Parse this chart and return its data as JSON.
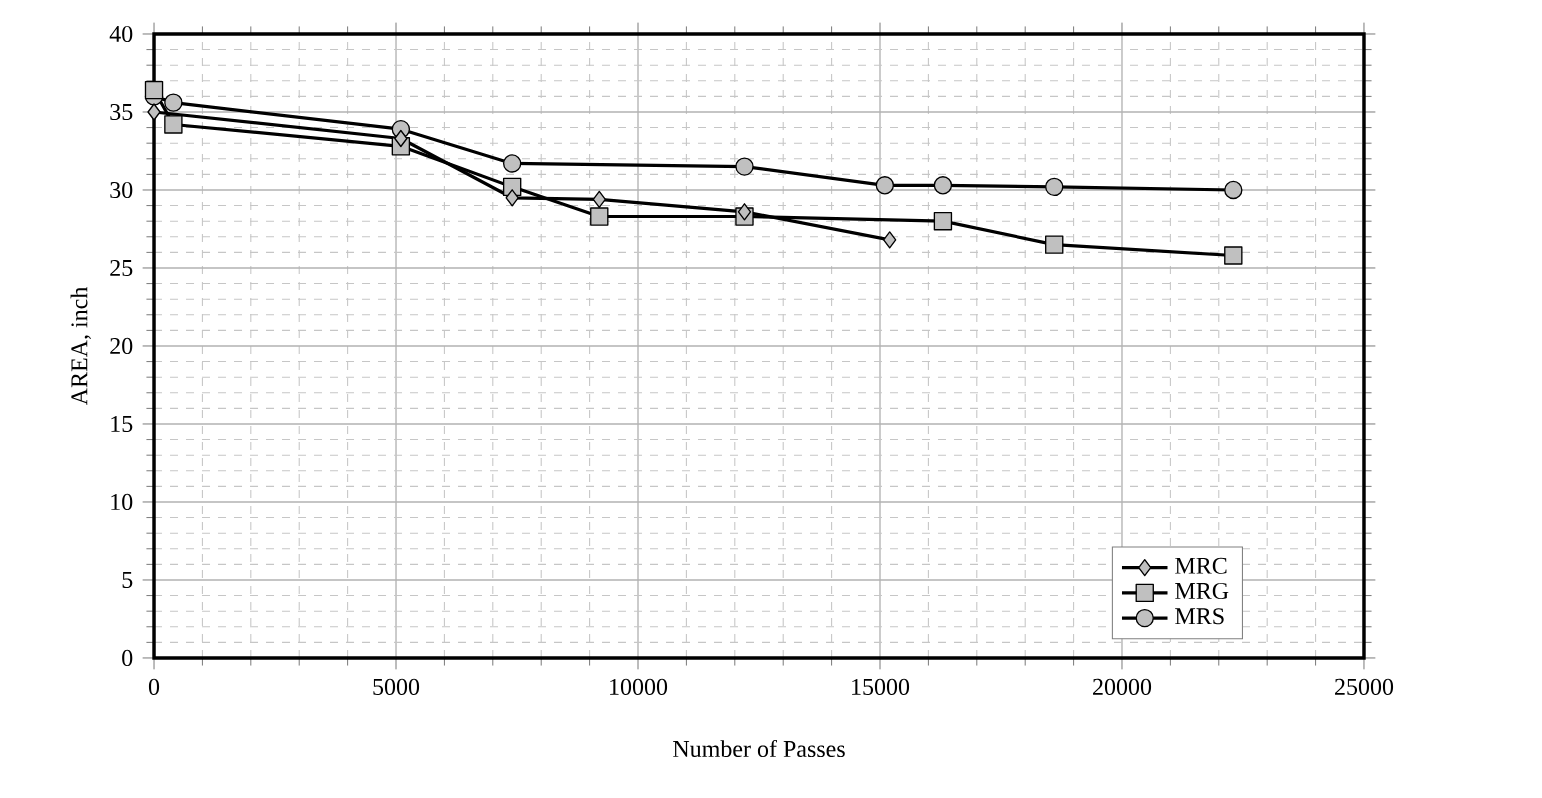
{
  "chart_data": {
    "type": "line",
    "xlabel": "Number of Passes",
    "ylabel": "AREA, inch",
    "xlim": [
      0,
      25000
    ],
    "xticks": [
      0,
      5000,
      10000,
      15000,
      20000,
      25000
    ],
    "ylim": [
      0,
      40
    ],
    "yticks": [
      0,
      5,
      10,
      15,
      20,
      25,
      30,
      35,
      40
    ],
    "grid": true,
    "legend": "bottom right",
    "series": [
      {
        "name": "MRC",
        "color": "#000000",
        "marker": "diamond",
        "x": [
          0,
          5100,
          7400,
          9200,
          12200,
          15200
        ],
        "values": [
          35.0,
          33.3,
          29.5,
          29.4,
          28.6,
          26.8
        ]
      },
      {
        "name": "MRG",
        "color": "#000000",
        "marker": "square",
        "x": [
          0,
          400,
          5100,
          7400,
          9200,
          12200,
          16300,
          18600,
          22300
        ],
        "values": [
          36.4,
          34.2,
          32.8,
          30.2,
          28.3,
          28.3,
          28.0,
          26.5,
          25.8
        ]
      },
      {
        "name": "MRS",
        "color": "#000000",
        "marker": "circle",
        "x": [
          0,
          400,
          5100,
          7400,
          12200,
          15100,
          16300,
          18600,
          22300
        ],
        "values": [
          36.0,
          35.6,
          33.9,
          31.7,
          31.5,
          30.3,
          30.3,
          30.2,
          30.0
        ]
      }
    ]
  }
}
